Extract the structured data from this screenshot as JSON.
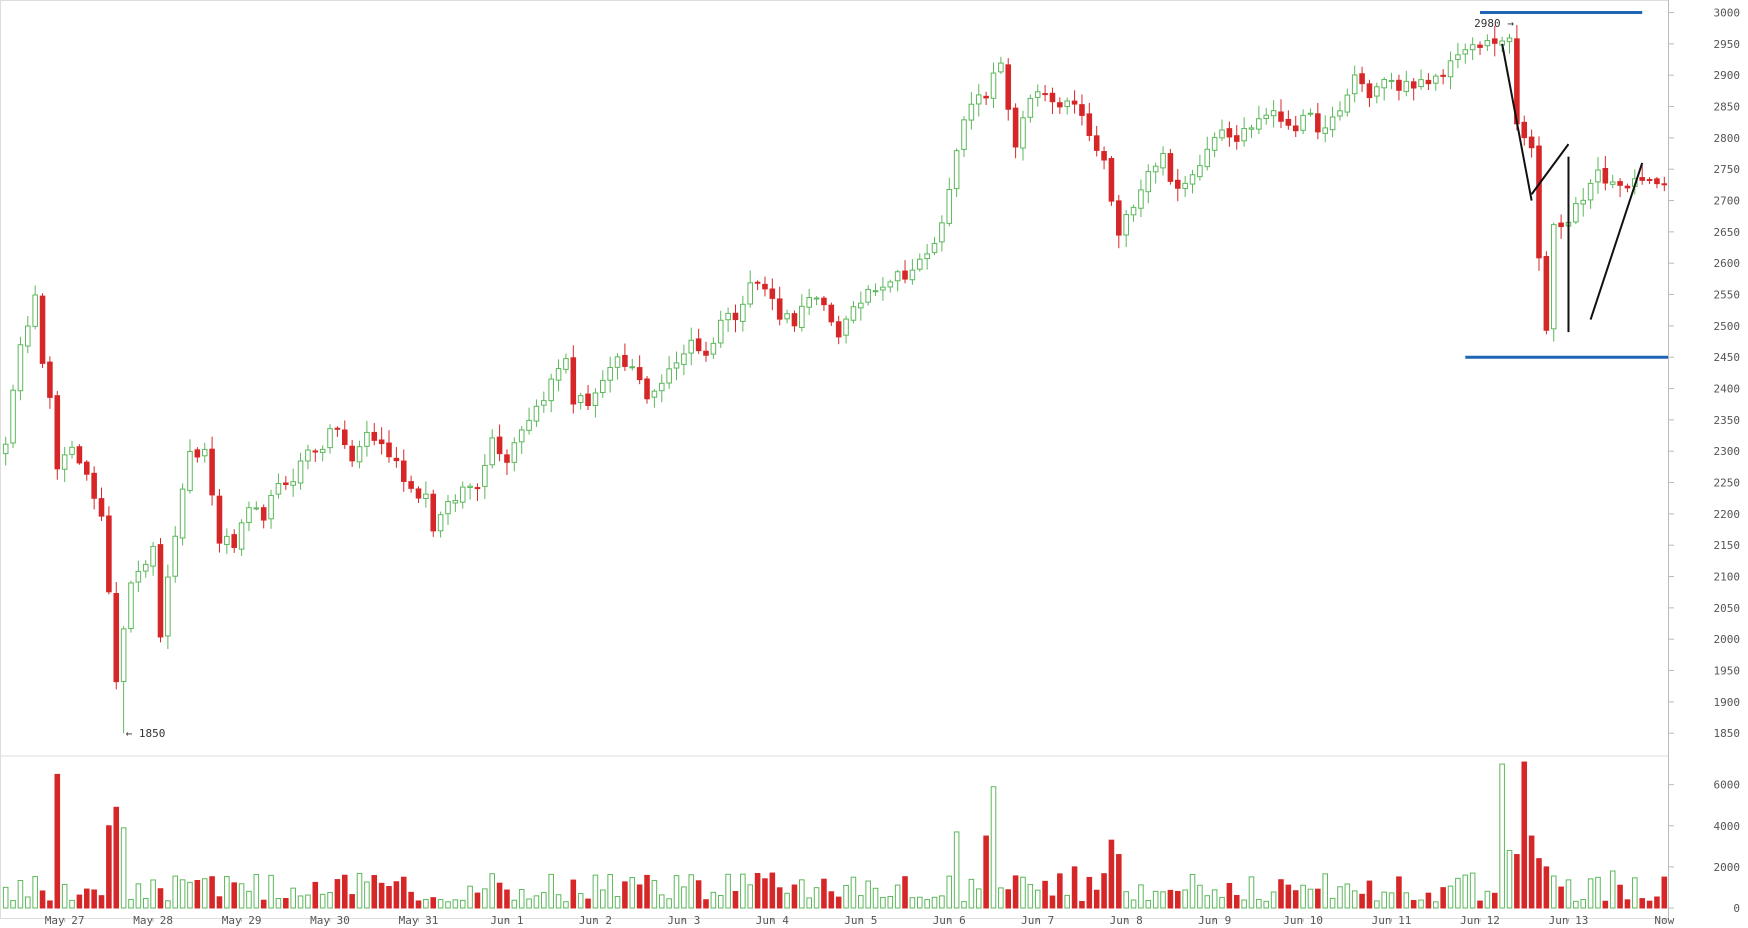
{
  "chart_data": {
    "type": "candlestick",
    "title": "",
    "colors": {
      "up": "#5cb85c",
      "down": "#d62728",
      "grid": "#e6e6e6",
      "axis": "#bbbbbb",
      "annotation_blue": "#1f65b4",
      "annotation_black": "#111111"
    },
    "price_axis": {
      "ylim": [
        1820,
        3020
      ],
      "ticks": [
        1850,
        1900,
        1950,
        2000,
        2050,
        2100,
        2150,
        2200,
        2250,
        2300,
        2350,
        2400,
        2450,
        2500,
        2550,
        2600,
        2650,
        2700,
        2750,
        2800,
        2850,
        2900,
        2950,
        3000
      ],
      "tick_labels": [
        "1850",
        "1900",
        "1950",
        "2000",
        "2050",
        "2100",
        "2150",
        "2200",
        "2250",
        "2300",
        "2350",
        "2400",
        "2450",
        "2500",
        "2550",
        "2600",
        "2650",
        "2700",
        "2750",
        "2800",
        "2850",
        "2900",
        "2950",
        "3000"
      ]
    },
    "volume_axis": {
      "ylim": [
        0,
        7200
      ],
      "ticks": [
        0,
        2000,
        4000,
        6000
      ],
      "tick_labels": [
        "0",
        "2000",
        "4000",
        "6000"
      ]
    },
    "x_axis": {
      "labels": [
        "May 27",
        "May 28",
        "May 29",
        "May 30",
        "May 31",
        "Jun 1",
        "Jun 2",
        "Jun 3",
        "Jun 4",
        "Jun 5",
        "Jun 6",
        "Jun 7",
        "Jun 8",
        "Jun 9",
        "Jun 10",
        "Jun 11",
        "Jun 12",
        "Jun 13",
        "Now"
      ],
      "label_bar_index": [
        8,
        20,
        32,
        44,
        56,
        68,
        80,
        92,
        104,
        116,
        128,
        140,
        152,
        164,
        176,
        188,
        200,
        212,
        225
      ]
    },
    "annotations": {
      "low_label": "← 1850",
      "high_label": "2980 →",
      "low_bar_index": 16,
      "high_bar_index": 205
    },
    "guide_levels": {
      "resistance": 3000,
      "support": 2450
    },
    "trend_segments": [
      {
        "from": [
          203,
          2950
        ],
        "to": [
          207,
          2700
        ]
      },
      {
        "from": [
          207,
          2710
        ],
        "to": [
          212,
          2790
        ]
      },
      {
        "from": [
          212,
          2770
        ],
        "to": [
          212,
          2490
        ]
      },
      {
        "from": [
          215,
          2510
        ],
        "to": [
          222,
          2760
        ]
      }
    ],
    "bar_interval": "2h",
    "anchors": [
      [
        0,
        2320
      ],
      [
        2,
        2460
      ],
      [
        4,
        2560
      ],
      [
        5,
        2450
      ],
      [
        6,
        2380
      ],
      [
        7,
        2270
      ],
      [
        9,
        2300
      ],
      [
        11,
        2270
      ],
      [
        13,
        2190
      ],
      [
        15,
        1940
      ],
      [
        17,
        2100
      ],
      [
        20,
        2140
      ],
      [
        21,
        2010
      ],
      [
        23,
        2170
      ],
      [
        25,
        2290
      ],
      [
        27,
        2300
      ],
      [
        29,
        2160
      ],
      [
        31,
        2150
      ],
      [
        33,
        2200
      ],
      [
        35,
        2200
      ],
      [
        37,
        2240
      ],
      [
        39,
        2260
      ],
      [
        41,
        2300
      ],
      [
        43,
        2310
      ],
      [
        45,
        2340
      ],
      [
        47,
        2280
      ],
      [
        49,
        2330
      ],
      [
        51,
        2310
      ],
      [
        53,
        2280
      ],
      [
        55,
        2240
      ],
      [
        57,
        2230
      ],
      [
        58,
        2180
      ],
      [
        60,
        2210
      ],
      [
        62,
        2240
      ],
      [
        64,
        2250
      ],
      [
        66,
        2320
      ],
      [
        68,
        2290
      ],
      [
        70,
        2340
      ],
      [
        72,
        2370
      ],
      [
        74,
        2410
      ],
      [
        76,
        2450
      ],
      [
        77,
        2380
      ],
      [
        79,
        2380
      ],
      [
        81,
        2410
      ],
      [
        83,
        2440
      ],
      [
        85,
        2430
      ],
      [
        87,
        2390
      ],
      [
        89,
        2410
      ],
      [
        91,
        2440
      ],
      [
        93,
        2480
      ],
      [
        95,
        2450
      ],
      [
        97,
        2510
      ],
      [
        99,
        2520
      ],
      [
        101,
        2570
      ],
      [
        103,
        2560
      ],
      [
        105,
        2520
      ],
      [
        107,
        2510
      ],
      [
        109,
        2540
      ],
      [
        111,
        2530
      ],
      [
        113,
        2490
      ],
      [
        115,
        2520
      ],
      [
        117,
        2560
      ],
      [
        119,
        2570
      ],
      [
        121,
        2580
      ],
      [
        123,
        2590
      ],
      [
        125,
        2610
      ],
      [
        127,
        2660
      ],
      [
        129,
        2790
      ],
      [
        131,
        2850
      ],
      [
        133,
        2870
      ],
      [
        135,
        2920
      ],
      [
        136,
        2850
      ],
      [
        137,
        2790
      ],
      [
        139,
        2860
      ],
      [
        141,
        2870
      ],
      [
        143,
        2840
      ],
      [
        145,
        2860
      ],
      [
        147,
        2800
      ],
      [
        149,
        2760
      ],
      [
        151,
        2640
      ],
      [
        153,
        2700
      ],
      [
        155,
        2750
      ],
      [
        157,
        2770
      ],
      [
        159,
        2710
      ],
      [
        161,
        2740
      ],
      [
        163,
        2790
      ],
      [
        165,
        2820
      ],
      [
        167,
        2800
      ],
      [
        169,
        2820
      ],
      [
        171,
        2840
      ],
      [
        173,
        2830
      ],
      [
        175,
        2820
      ],
      [
        177,
        2830
      ],
      [
        179,
        2810
      ],
      [
        181,
        2840
      ],
      [
        183,
        2900
      ],
      [
        185,
        2870
      ],
      [
        187,
        2890
      ],
      [
        189,
        2880
      ],
      [
        191,
        2890
      ],
      [
        193,
        2880
      ],
      [
        195,
        2900
      ],
      [
        197,
        2940
      ],
      [
        199,
        2940
      ],
      [
        201,
        2950
      ],
      [
        203,
        2960
      ],
      [
        204,
        2950
      ],
      [
        205,
        2820
      ],
      [
        206,
        2800
      ],
      [
        207,
        2780
      ],
      [
        208,
        2600
      ],
      [
        209,
        2500
      ],
      [
        210,
        2660
      ],
      [
        212,
        2670
      ],
      [
        214,
        2710
      ],
      [
        216,
        2740
      ],
      [
        218,
        2730
      ],
      [
        219,
        2720
      ],
      [
        220,
        2730
      ]
    ],
    "volume_spikes": {
      "7": 6500,
      "14": 4000,
      "15": 4900,
      "16": 3900,
      "104": 1700,
      "129": 3700,
      "133": 3500,
      "134": 5900,
      "145": 2000,
      "150": 3300,
      "151": 2600,
      "203": 7000,
      "204": 2800,
      "205": 2600,
      "206": 7100,
      "207": 3500,
      "208": 2400,
      "209": 2000,
      "218": 1800
    }
  }
}
